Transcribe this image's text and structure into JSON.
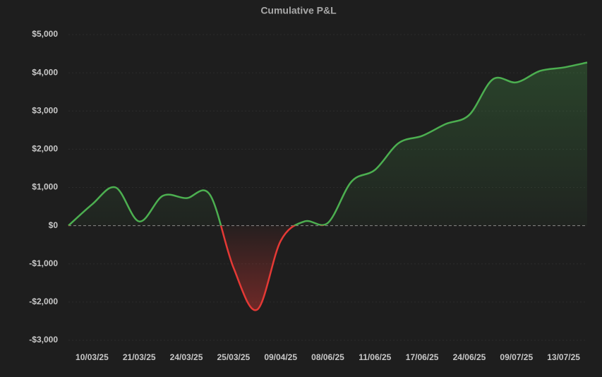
{
  "chart_data": {
    "type": "line",
    "title": "Cumulative P&L",
    "categories": [
      null,
      "10/03/25",
      null,
      "21/03/25",
      null,
      "24/03/25",
      null,
      "25/03/25",
      null,
      "09/04/25",
      null,
      "08/06/25",
      null,
      "11/06/25",
      null,
      "17/06/25",
      null,
      "24/06/25",
      null,
      "09/07/25",
      null,
      "13/07/25",
      null
    ],
    "series": [
      {
        "name": "Cumulative P&L",
        "color": "#4caf50",
        "negative_color": "#e53935",
        "values": [
          0,
          555,
          1000,
          110,
          780,
          720,
          810,
          -1100,
          -2200,
          -400,
          110,
          70,
          1150,
          1460,
          2160,
          2350,
          2660,
          2900,
          3830,
          3750,
          4050,
          4140,
          4270
        ]
      }
    ],
    "ylim": [
      -3000,
      5000
    ],
    "yticks": [
      {
        "value": -3000,
        "label": "-$3,000"
      },
      {
        "value": -2000,
        "label": "-$2,000"
      },
      {
        "value": -1000,
        "label": "-$1,000"
      },
      {
        "value": 0,
        "label": "$0"
      },
      {
        "value": 1000,
        "label": "$1,000"
      },
      {
        "value": 2000,
        "label": "$2,000"
      },
      {
        "value": 3000,
        "label": "$3,000"
      },
      {
        "value": 4000,
        "label": "$4,000"
      },
      {
        "value": 5000,
        "label": "$5,000"
      }
    ],
    "grid": true
  }
}
